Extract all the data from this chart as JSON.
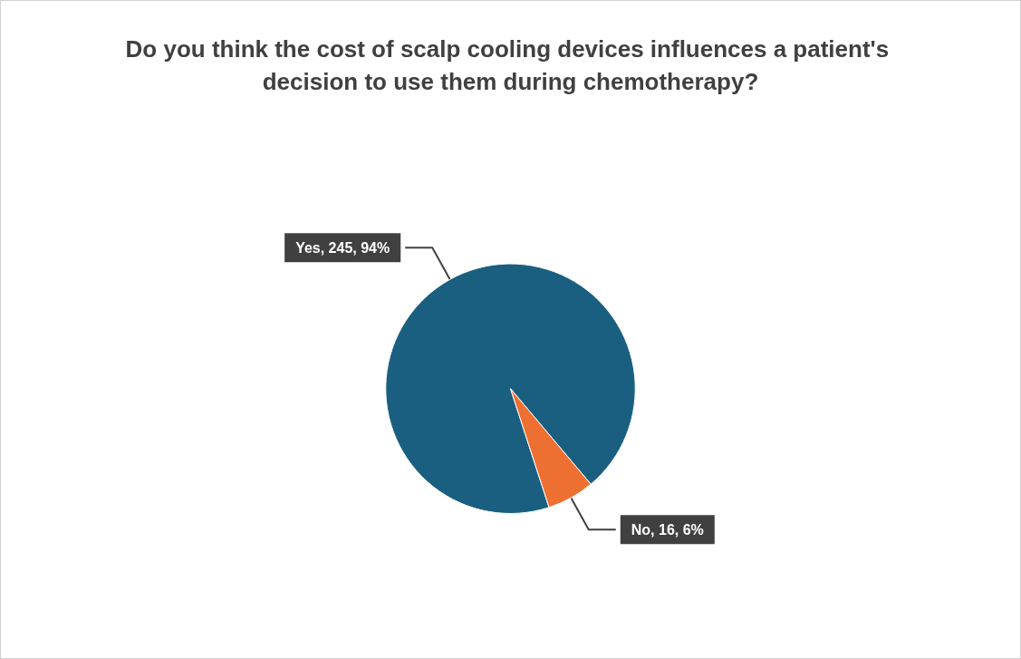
{
  "chart_data": {
    "type": "pie",
    "title": "Do you think the cost of scalp cooling devices influences a patient's decision to use them during chemotherapy?",
    "categories": [
      "Yes",
      "No"
    ],
    "values": [
      245,
      16
    ],
    "colors": [
      "#1a5f80",
      "#ed7032"
    ],
    "value_labels": [
      ", 245, 94%",
      ", 16, 6%"
    ]
  }
}
